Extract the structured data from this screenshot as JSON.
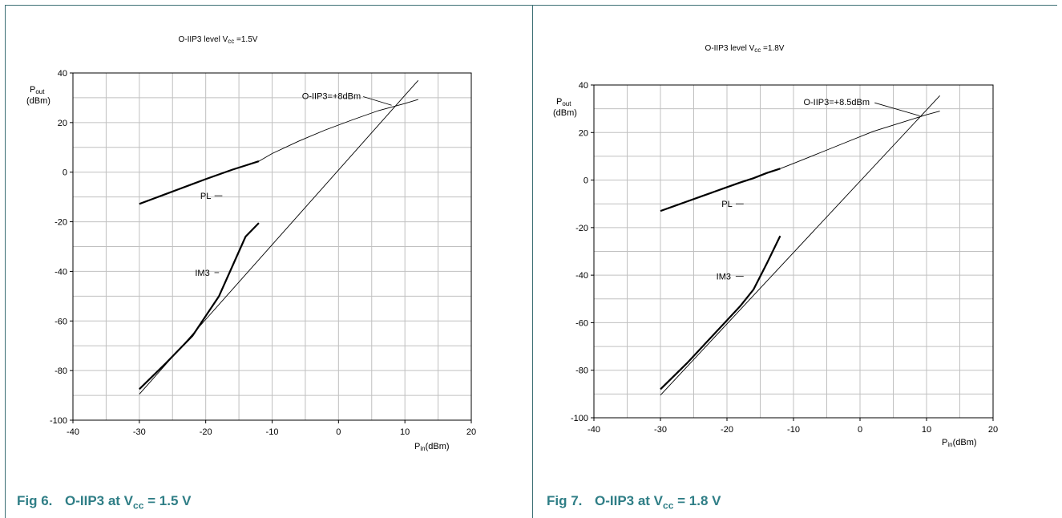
{
  "figures": [
    {
      "caption_number": "Fig 6.",
      "caption_prefix": "O-IIP3 at V",
      "caption_sub": "cc",
      "caption_suffix": " = 1.5 V"
    },
    {
      "caption_number": "Fig 7.",
      "caption_prefix": "O-IIP3 at V",
      "caption_sub": "cc",
      "caption_suffix": " = 1.8 V"
    }
  ],
  "chart_data": [
    {
      "type": "line",
      "title_main": "O-IIP3 level V",
      "title_sub": "cc",
      "title_tail": " =1.5V",
      "xlabel_main": "P",
      "xlabel_sub": "in",
      "xlabel_tail": "(dBm)",
      "ylabel_main": "P",
      "ylabel_sub": "out",
      "ylabel_unit": "(dBm)",
      "xlim": [
        -40,
        20
      ],
      "ylim": [
        -100,
        40
      ],
      "xticks": [
        -40,
        -30,
        -20,
        -10,
        0,
        10,
        20
      ],
      "yticks": [
        40,
        20,
        0,
        -20,
        -40,
        -60,
        -80,
        -100
      ],
      "x_minor": 5,
      "y_minor": 10,
      "grid": true,
      "series": [
        {
          "name": "PL",
          "kind": "measured",
          "x": [
            -30,
            -28,
            -26,
            -24,
            -22,
            -20,
            -18,
            -16,
            -14,
            -12
          ],
          "y": [
            -12.8,
            -10.8,
            -8.8,
            -6.8,
            -4.8,
            -2.8,
            -0.9,
            1.0,
            2.7,
            4.4
          ]
        },
        {
          "name": "PL",
          "kind": "fit",
          "x": [
            -12,
            -10,
            -6,
            -2,
            2,
            6,
            10,
            12
          ],
          "y": [
            4.4,
            7.5,
            12.5,
            17.0,
            21.0,
            24.8,
            27.7,
            29.3
          ]
        },
        {
          "name": "IM3",
          "kind": "measured",
          "x": [
            -30,
            -26,
            -22,
            -18,
            -16,
            -14,
            -12
          ],
          "y": [
            -87.5,
            -77,
            -66,
            -50,
            -38,
            -26,
            -20.5
          ]
        },
        {
          "name": "IM3",
          "kind": "fit",
          "x": [
            -30,
            12
          ],
          "y": [
            -89.5,
            37
          ]
        }
      ],
      "annotations": [
        {
          "text": "O-IIP3=+8dBm",
          "x": -5.5,
          "y": 29.5,
          "arrow_to": [
            8,
            27
          ]
        },
        {
          "text": "PL",
          "x": -20,
          "y": -9.5,
          "line_to": [
            -17.5,
            -9.5
          ]
        },
        {
          "text": "IM3",
          "x": -20.5,
          "y": -40.5,
          "line_to": [
            -18,
            -40.5
          ]
        }
      ]
    },
    {
      "type": "line",
      "title_main": "O-IIP3 level V",
      "title_sub": "cc",
      "title_tail": " =1.8V",
      "xlabel_main": "P",
      "xlabel_sub": "in",
      "xlabel_tail": "(dBm)",
      "ylabel_main": "P",
      "ylabel_sub": "out",
      "ylabel_unit": "(dBm)",
      "xlim": [
        -40,
        20
      ],
      "ylim": [
        -100,
        40
      ],
      "xticks": [
        -40,
        -30,
        -20,
        -10,
        0,
        10,
        20
      ],
      "yticks": [
        40,
        20,
        0,
        -20,
        -40,
        -60,
        -80,
        -100
      ],
      "x_minor": 5,
      "y_minor": 10,
      "grid": true,
      "series": [
        {
          "name": "PL",
          "kind": "measured",
          "x": [
            -30,
            -28,
            -26,
            -24,
            -22,
            -20,
            -18,
            -16,
            -14,
            -12
          ],
          "y": [
            -13,
            -11,
            -9,
            -7,
            -5,
            -3,
            -1,
            0.8,
            3.0,
            4.8
          ]
        },
        {
          "name": "PL",
          "kind": "fit",
          "x": [
            -12,
            -10,
            -6,
            -2,
            2,
            6,
            10,
            12
          ],
          "y": [
            4.8,
            7.0,
            11.5,
            16.0,
            20.5,
            24.0,
            27.5,
            29.0
          ]
        },
        {
          "name": "IM3",
          "kind": "measured",
          "x": [
            -30,
            -26,
            -22,
            -20,
            -18,
            -16,
            -14,
            -12
          ],
          "y": [
            -88,
            -77,
            -65,
            -59,
            -53,
            -46,
            -35,
            -23.5
          ]
        },
        {
          "name": "IM3",
          "kind": "fit",
          "x": [
            -30,
            12
          ],
          "y": [
            -90.5,
            35.5
          ]
        }
      ],
      "annotations": [
        {
          "text": "O-IIP3=+8.5dBm",
          "x": -8.5,
          "y": 31.5,
          "arrow_to": [
            9,
            27
          ]
        },
        {
          "text": "PL",
          "x": -20,
          "y": -10,
          "line_to": [
            -17.5,
            -10
          ]
        },
        {
          "text": "IM3",
          "x": -20.5,
          "y": -40.5,
          "line_to": [
            -17.5,
            -40.5
          ]
        }
      ]
    }
  ]
}
